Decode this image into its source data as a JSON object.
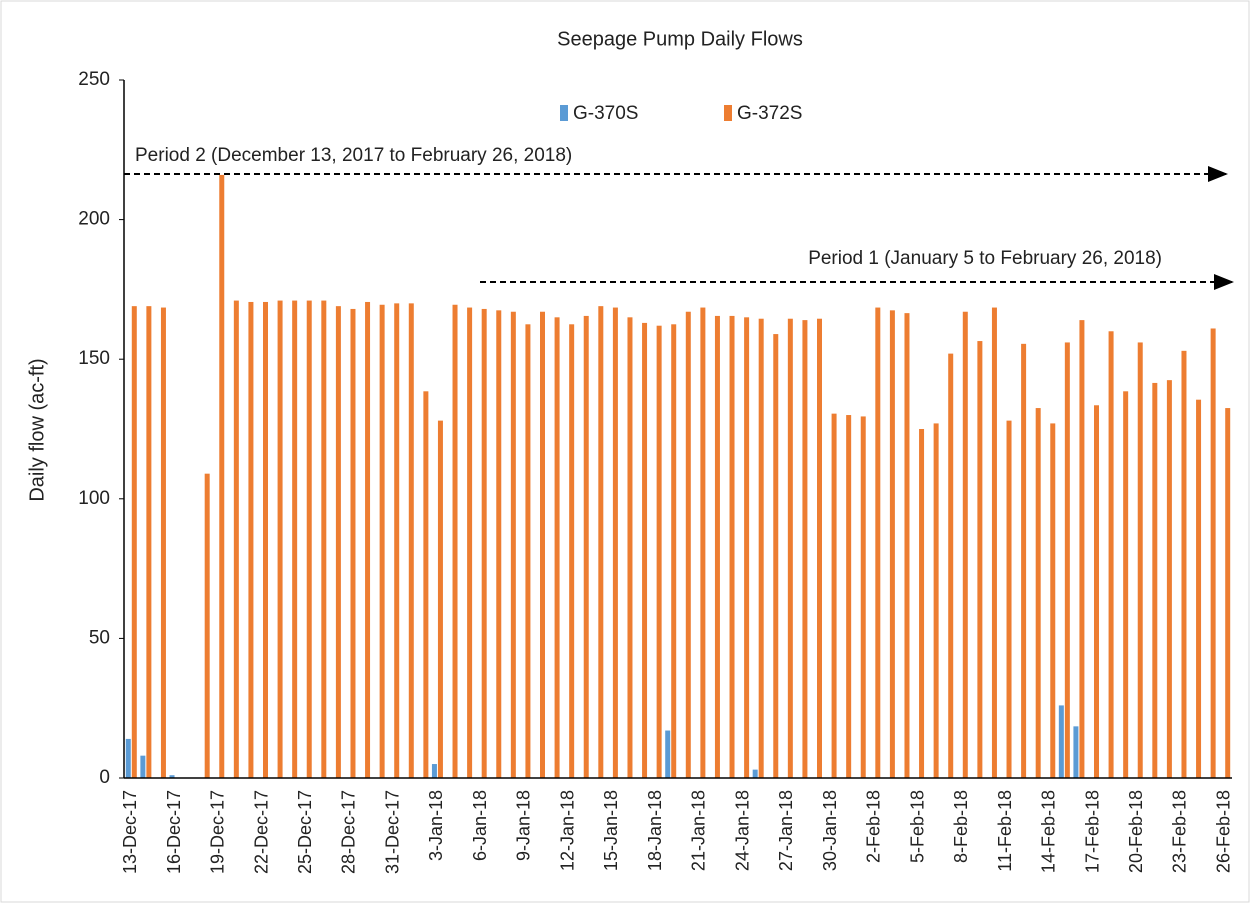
{
  "chart_data": {
    "type": "bar",
    "title": "Seepage Pump Daily Flows",
    "y_label": "Daily flow (ac-ft)",
    "categories": [
      "13-Dec-17",
      null,
      null,
      "16-Dec-17",
      null,
      null,
      "19-Dec-17",
      null,
      null,
      "22-Dec-17",
      null,
      null,
      "25-Dec-17",
      null,
      null,
      "28-Dec-17",
      null,
      null,
      "31-Dec-17",
      null,
      null,
      "3-Jan-18",
      null,
      null,
      "6-Jan-18",
      null,
      null,
      "9-Jan-18",
      null,
      null,
      "12-Jan-18",
      null,
      null,
      "15-Jan-18",
      null,
      null,
      "18-Jan-18",
      null,
      null,
      "21-Jan-18",
      null,
      null,
      "24-Jan-18",
      null,
      null,
      "27-Jan-18",
      null,
      null,
      "30-Jan-18",
      null,
      null,
      "2-Feb-18",
      null,
      null,
      "5-Feb-18",
      null,
      null,
      "8-Feb-18",
      null,
      null,
      "11-Feb-18",
      null,
      null,
      "14-Feb-18",
      null,
      null,
      "17-Feb-18",
      null,
      null,
      "20-Feb-18",
      null,
      null,
      "23-Feb-18",
      null,
      null,
      "26-Feb-18"
    ],
    "series": [
      {
        "name": "G-370S",
        "color": "#5b9bd5",
        "values": [
          14,
          8,
          0,
          1,
          0,
          0,
          0,
          0,
          0,
          0,
          0,
          0,
          0,
          0,
          0,
          0,
          0,
          0,
          0,
          0,
          0,
          5,
          0,
          0,
          0,
          0,
          0,
          0,
          0,
          0,
          0,
          0,
          0,
          0,
          0,
          0,
          0,
          17,
          0,
          0,
          0,
          0,
          0,
          3,
          0,
          0,
          0,
          0,
          0,
          0,
          0,
          0,
          0,
          0,
          0,
          0,
          0,
          0,
          0,
          0,
          0,
          0,
          0,
          0,
          26,
          18.5,
          0,
          0,
          0,
          0,
          0,
          0,
          0,
          0,
          0,
          0
        ]
      },
      {
        "name": "G-372S",
        "color": "#ed7d31",
        "values": [
          169,
          169,
          168.5,
          0,
          0,
          109,
          216,
          171,
          170.5,
          170.5,
          171,
          171,
          171,
          171,
          169,
          168,
          170.5,
          169.5,
          170,
          170,
          138.5,
          128,
          169.5,
          168.5,
          168,
          167.5,
          167,
          162.5,
          167,
          165,
          162.5,
          165.5,
          169,
          168.5,
          165,
          163,
          162,
          162.5,
          167,
          168.5,
          165.5,
          165.5,
          165,
          164.5,
          159,
          164.5,
          164,
          164.5,
          130.5,
          130,
          129.5,
          168.5,
          167.5,
          166.5,
          125,
          127,
          152,
          167,
          156.5,
          168.5,
          128,
          155.5,
          132.5,
          127,
          156,
          164,
          133.5,
          160,
          138.5,
          156,
          141.5,
          142.5,
          153,
          135.5,
          161,
          132.5
        ]
      }
    ],
    "annotations": [
      "Period 2 (December 13, 2017 to February 26, 2018)",
      "Period 1 (January 5 to February 26, 2018)"
    ],
    "ylim": [
      0,
      250
    ],
    "yticks": [
      0,
      50,
      100,
      150,
      200,
      250
    ],
    "grid": false,
    "legend": "top"
  }
}
